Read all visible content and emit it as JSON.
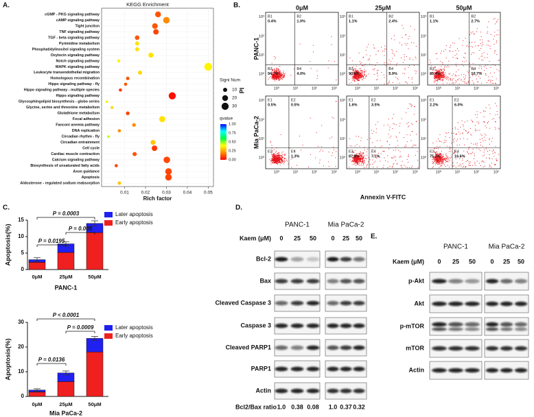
{
  "panel_labels": [
    "A.",
    "B.",
    "C.",
    "D.",
    "E."
  ],
  "chart_data": [
    {
      "type": "dotplot",
      "title": "KEGG Enrichment",
      "x_label": "Rich factor",
      "categories": [
        "cGMP - PKG signaling pathway",
        "cAMP signaling pathway",
        "Tight junction",
        "TNF signaling pathway",
        "TGF - beta signaling pathway",
        "Pyrimidine metabolism",
        "Phosphatidylinositol signaling system",
        "Oxytocin signaling pathway",
        "Notch signaling pathway",
        "MAPK signaling pathway",
        "Leukocyte transendothelial migration",
        "Homologous recombination",
        "Hippo signaling pathway - fly",
        "Hippo signaling pathway - multiple species",
        "Hippo signaling pathway",
        "Glycosphingolipid biosynthesis - globo series",
        "Glycine, serine and threonine metabolism",
        "Glutathione metabolism",
        "Focal adhesion",
        "Fanconi anemia pathway",
        "DNA replication",
        "Circadian rhythm - fly",
        "Circadian entrainment",
        "Cell cycle",
        "Cardiac muscle contraction",
        "Calcium signaling pathway",
        "Biosynthesis of unsaturated fatty acids",
        "Axon guidance",
        "Apoptosis",
        "Aldosterone - regulated sodium reabsorption"
      ],
      "x": [
        0.026,
        0.03,
        0.0245,
        0.025,
        0.016,
        0.016,
        0.016,
        0.0226,
        0.0072,
        0.05,
        0.0174,
        0.0115,
        0.0105,
        0.008,
        0.0328,
        0.0015,
        0.004,
        0.0115,
        0.028,
        0.0145,
        0.0075,
        0.0023,
        0.0236,
        0.0243,
        0.0148,
        0.0302,
        0.006,
        0.031,
        0.031,
        0.0075
      ],
      "size": [
        20,
        25,
        18,
        18,
        12,
        10,
        10,
        15,
        6,
        35,
        10,
        7,
        6,
        6,
        30,
        4,
        5,
        8,
        22,
        8,
        6,
        4,
        14,
        18,
        10,
        25,
        6,
        25,
        25,
        7
      ],
      "qvalue": [
        0.12,
        0.2,
        0.12,
        0.1,
        0.12,
        0.35,
        0.35,
        0.35,
        0.38,
        0.38,
        0.33,
        0.12,
        0.12,
        0.08,
        0.02,
        0.38,
        0.33,
        0.1,
        0.35,
        0.2,
        0.2,
        0.45,
        0.3,
        0.08,
        0.12,
        0.1,
        0.1,
        0.1,
        0.1,
        0.3
      ],
      "xlim": [
        -0.001,
        0.0525
      ],
      "xticks": [
        0.01,
        0.02,
        0.03,
        0.04,
        0.05
      ],
      "size_legend": {
        "title": "Signi Num",
        "values": [
          10,
          20,
          30
        ]
      },
      "color_legend": {
        "title": "qvalue",
        "ticks": [
          {
            "value": 0,
            "label": "0.00"
          },
          {
            "value": 0.25,
            "label": "0.25"
          },
          {
            "value": 0.5,
            "label": "0.50"
          },
          {
            "value": 0.75,
            "label": "0.75"
          },
          {
            "value": 1,
            "label": "1.00"
          }
        ],
        "colors": [
          "#ff0000",
          "#ff8c00",
          "#ffff00",
          "#00ff40",
          "#00ffff",
          "#0000ff"
        ]
      }
    },
    {
      "type": "stacked_bar",
      "y_label": "Apoptosis(%)",
      "x_label": "PANC-1",
      "categories": [
        "0μM",
        "25μM",
        "50μM"
      ],
      "series": [
        {
          "name": "Early apoptosis",
          "color": "#f02020",
          "values": [
            2.2,
            5.2,
            11.2
          ]
        },
        {
          "name": "Later apoptosis",
          "color": "#2020f0",
          "values": [
            0.8,
            2.6,
            2.8
          ],
          "errors": [
            0.6,
            0.6,
            0.8
          ]
        }
      ],
      "ylim": [
        0,
        15
      ],
      "yticks": [
        0,
        5,
        10,
        15
      ],
      "comparisons": [
        "P = 0.0195",
        "P = 0.005",
        "P = 0.0003"
      ]
    },
    {
      "type": "stacked_bar",
      "y_label": "Apoptosis(%)",
      "x_label": "Mia PaCa-2",
      "categories": [
        "0μM",
        "25μM",
        "50μM"
      ],
      "series": [
        {
          "name": "Early apoptosis",
          "color": "#f02020",
          "values": [
            1.8,
            6.0,
            18.0
          ]
        },
        {
          "name": "Later apoptosis",
          "color": "#2020f0",
          "values": [
            0.8,
            3.5,
            5.5
          ],
          "errors": [
            0.5,
            0.8,
            0.8
          ]
        }
      ],
      "ylim": [
        0,
        30
      ],
      "yticks": [
        0,
        10,
        20,
        30
      ],
      "comparisons": [
        "P = 0.0136",
        "P = 0.0009",
        "P < 0.0001"
      ]
    }
  ],
  "flow": {
    "x_label": "Annexin V-FITC",
    "y_label": "PI",
    "columns": [
      "0μM",
      "25μM",
      "50μM"
    ],
    "ticks": [
      "10⁰",
      "10¹",
      "10²",
      "10³"
    ],
    "rows": [
      {
        "name": "PANC-1",
        "plots": [
          {
            "quadrants": [
              {
                "name": "B1",
                "percent": "0.4%"
              },
              {
                "name": "B2",
                "percent": "1.0%"
              },
              {
                "name": "B3",
                "percent": "94.7%"
              },
              {
                "name": "B4",
                "percent": "4.0%"
              }
            ]
          },
          {
            "quadrants": [
              {
                "name": "B1",
                "percent": "1.1%"
              },
              {
                "name": "B2",
                "percent": "2.4%"
              },
              {
                "name": "B3",
                "percent": "90.6%"
              },
              {
                "name": "B4",
                "percent": "5.9%"
              }
            ]
          },
          {
            "quadrants": [
              {
                "name": "B1",
                "percent": "1.1%"
              },
              {
                "name": "B2",
                "percent": "2.7%"
              },
              {
                "name": "B3",
                "percent": "85.4%"
              },
              {
                "name": "B4",
                "percent": "10.7%"
              }
            ]
          }
        ]
      },
      {
        "name": "Mia PaCa-2",
        "plots": [
          {
            "quadrants": [
              {
                "name": "E1",
                "percent": "0.5%"
              },
              {
                "name": "E2",
                "percent": "0.5%"
              },
              {
                "name": "E3"
              },
              {
                "name": "E4",
                "percent": "1.3%"
              }
            ]
          },
          {
            "quadrants": [
              {
                "name": "E1",
                "percent": "1.6%"
              },
              {
                "name": "E2",
                "percent": "3.5%"
              },
              {
                "name": "E3",
                "percent": "87.8%"
              },
              {
                "name": "E4",
                "percent": "7.1%"
              }
            ]
          },
          {
            "quadrants": [
              {
                "name": "E1",
                "percent": "2.2%"
              },
              {
                "name": "E2",
                "percent": "6.0%"
              },
              {
                "name": "E3",
                "percent": "75.2%"
              },
              {
                "name": "E4",
                "percent": "16.6%"
              }
            ]
          }
        ]
      }
    ]
  },
  "blots_d": {
    "cell_lines": [
      "PANC-1",
      "Mia PaCa-2"
    ],
    "dose_label": "Kaem (μM)",
    "doses": [
      "0",
      "25",
      "50"
    ],
    "proteins": [
      "Bcl-2",
      "Bax",
      "Cleaved Caspase 3",
      "Caspase 3",
      "Cleaved PARP1",
      "PARP1",
      "Actin"
    ],
    "ratio_label": "Bcl2/Bax ratio",
    "ratios": [
      [
        "1.0",
        "0.38",
        "0.08"
      ],
      [
        "1.0",
        "0.37",
        "0.32"
      ]
    ]
  },
  "blots_e": {
    "cell_lines": [
      "PANC-1",
      "Mia PaCa-2"
    ],
    "dose_label": "Kaem (μM)",
    "doses": [
      "0",
      "25",
      "50"
    ],
    "proteins": [
      "p-Akt",
      "Akt",
      "p-mTOR",
      "mTOR",
      "Actin"
    ]
  }
}
